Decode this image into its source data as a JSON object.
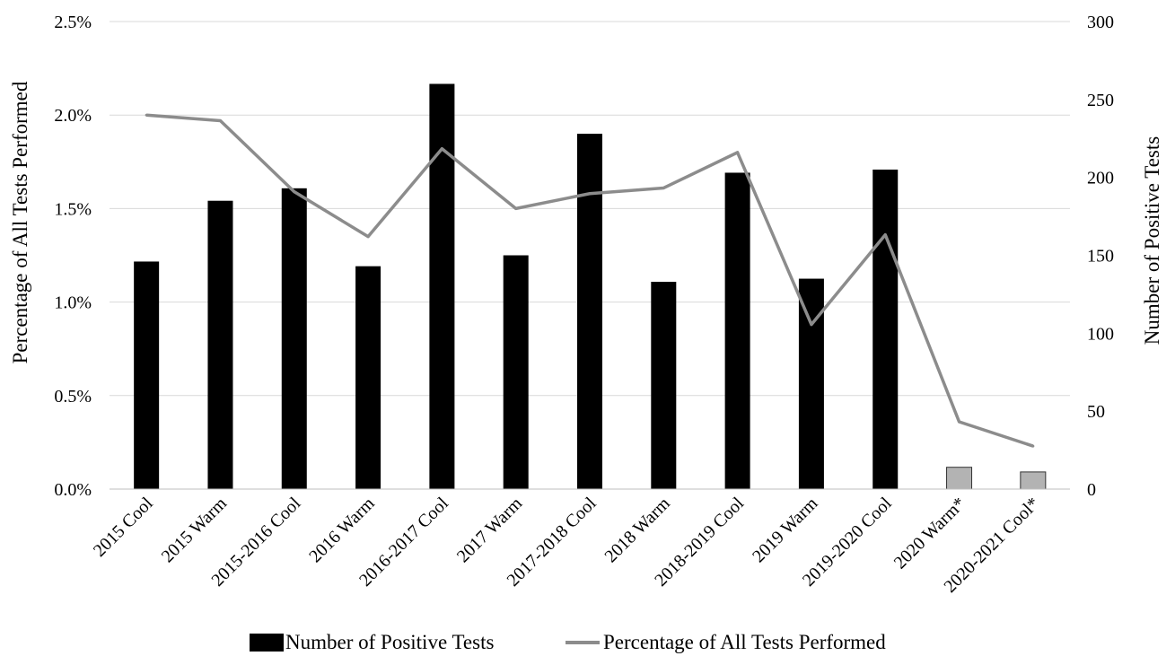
{
  "chart_data": {
    "type": "bar",
    "categories": [
      "2015 Cool",
      "2015 Warm",
      "2015-2016 Cool",
      "2016 Warm",
      "2016-2017 Cool",
      "2017 Warm",
      "2017-2018 Cool",
      "2018 Warm",
      "2018-2019 Cool",
      "2019 Warm",
      "2019-2020 Cool",
      "2020 Warm*",
      "2020-2021 Cool*"
    ],
    "series": [
      {
        "name": "Number of Positive Tests",
        "type": "bar",
        "axis": "right",
        "values": [
          146,
          185,
          193,
          143,
          260,
          150,
          228,
          133,
          203,
          135,
          205,
          14,
          11
        ],
        "colors": [
          "#000000",
          "#000000",
          "#000000",
          "#000000",
          "#000000",
          "#000000",
          "#000000",
          "#000000",
          "#000000",
          "#000000",
          "#000000",
          "#b3b3b3",
          "#b3b3b3"
        ]
      },
      {
        "name": "Percentage of All Tests Performed",
        "type": "line",
        "axis": "left",
        "color": "#8c8c8c",
        "values": [
          2.0,
          1.97,
          1.59,
          1.35,
          1.82,
          1.5,
          1.58,
          1.61,
          1.8,
          0.88,
          1.36,
          0.36,
          0.23
        ]
      }
    ],
    "y_left": {
      "label": "Percentage of All Tests Performed",
      "range": [
        0,
        2.5
      ],
      "ticks": [
        "0.0%",
        "0.5%",
        "1.0%",
        "1.5%",
        "2.0%",
        "2.5%"
      ]
    },
    "y_right": {
      "label": "Number of Positive Tests",
      "range": [
        0,
        300
      ],
      "ticks": [
        "0",
        "50",
        "100",
        "150",
        "200",
        "250",
        "300"
      ]
    },
    "grid": true,
    "legend_position": "bottom"
  }
}
